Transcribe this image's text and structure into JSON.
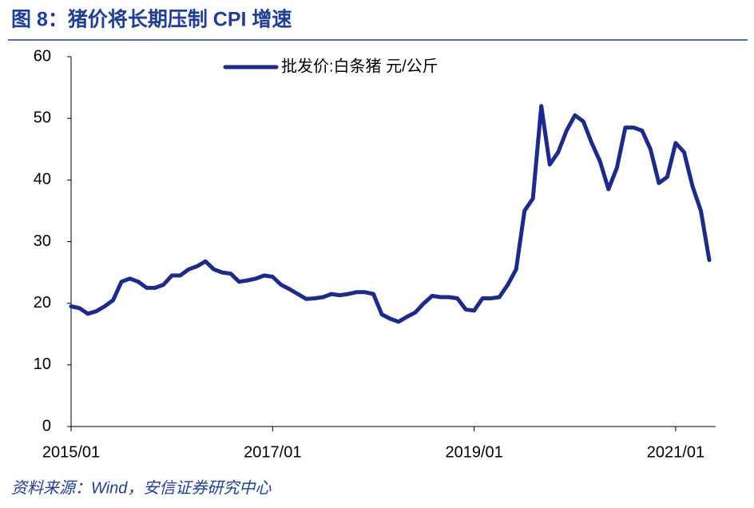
{
  "chart_data": {
    "type": "line",
    "title": "图 8：猪价将长期压制 CPI 增速",
    "source": "资料来源：Wind，安信证券研究中心",
    "x": [
      "2015/01",
      "2015/02",
      "2015/03",
      "2015/04",
      "2015/05",
      "2015/06",
      "2015/07",
      "2015/08",
      "2015/09",
      "2015/10",
      "2015/11",
      "2015/12",
      "2016/01",
      "2016/02",
      "2016/03",
      "2016/04",
      "2016/05",
      "2016/06",
      "2016/07",
      "2016/08",
      "2016/09",
      "2016/10",
      "2016/11",
      "2016/12",
      "2017/01",
      "2017/02",
      "2017/03",
      "2017/04",
      "2017/05",
      "2017/06",
      "2017/07",
      "2017/08",
      "2017/09",
      "2017/10",
      "2017/11",
      "2017/12",
      "2018/01",
      "2018/02",
      "2018/03",
      "2018/04",
      "2018/05",
      "2018/06",
      "2018/07",
      "2018/08",
      "2018/09",
      "2018/10",
      "2018/11",
      "2018/12",
      "2019/01",
      "2019/02",
      "2019/03",
      "2019/04",
      "2019/05",
      "2019/06",
      "2019/07",
      "2019/08",
      "2019/09",
      "2019/10",
      "2019/11",
      "2019/12",
      "2020/01",
      "2020/02",
      "2020/03",
      "2020/04",
      "2020/05",
      "2020/06",
      "2020/07",
      "2020/08",
      "2020/09",
      "2020/10",
      "2020/11",
      "2020/12",
      "2021/01",
      "2021/02",
      "2021/03",
      "2021/04",
      "2021/05"
    ],
    "series": [
      {
        "name": "批发价:白条猪 元/公斤",
        "color": "#1b2a8e",
        "values": [
          19.5,
          19.2,
          18.3,
          18.7,
          19.5,
          20.5,
          23.5,
          24,
          23.5,
          22.5,
          22.5,
          23,
          24.5,
          24.5,
          25.5,
          26,
          26.8,
          25.5,
          25,
          24.8,
          23.5,
          23.7,
          24,
          24.5,
          24.3,
          23,
          22.3,
          21.5,
          20.7,
          20.8,
          21,
          21.5,
          21.3,
          21.5,
          21.8,
          21.8,
          21.5,
          18.2,
          17.5,
          17,
          17.8,
          18.5,
          20,
          21.2,
          21,
          21,
          20.8,
          19,
          18.8,
          20.8,
          20.8,
          21,
          23,
          25.5,
          35,
          37,
          52,
          42.5,
          44.5,
          48,
          50.5,
          49.5,
          46,
          43,
          38.5,
          42,
          48.5,
          48.5,
          48,
          45,
          39.5,
          40.5,
          46,
          44.5,
          39,
          35,
          27
        ]
      }
    ],
    "xlim": [
      "2015/01",
      "2021/05"
    ],
    "xticks": [
      "2015/01",
      "2017/01",
      "2019/01",
      "2021/01"
    ],
    "ylim": [
      0,
      60
    ],
    "yticks": [
      0,
      10,
      20,
      30,
      40,
      50,
      60
    ]
  }
}
